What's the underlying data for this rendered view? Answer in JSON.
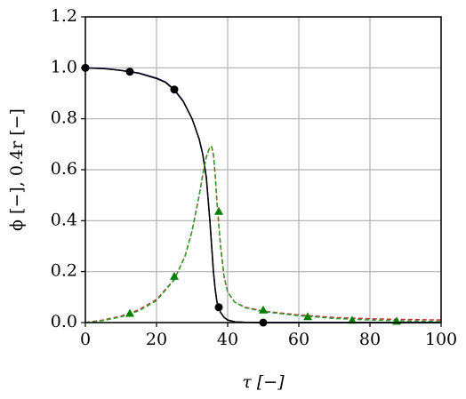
{
  "chart_data": {
    "type": "line",
    "xlabel": "τ [−]",
    "ylabel": "ϕ [−], 0.4r [−]",
    "xlim": [
      0,
      100
    ],
    "ylim": [
      0,
      1.2
    ],
    "xticks": [
      0,
      20,
      40,
      60,
      80,
      100
    ],
    "yticks": [
      {
        "value": 0,
        "label": "0.0"
      },
      {
        "value": 0.2,
        "label": "0.2"
      },
      {
        "value": 0.4,
        "label": "0.4"
      },
      {
        "value": 0.6,
        "label": "0.6"
      },
      {
        "value": 0.8,
        "label": "0.8"
      },
      {
        "value": 1.0,
        "label": "1.0"
      },
      {
        "value": 1.2,
        "label": "1.2"
      }
    ],
    "grid": true,
    "series": [
      {
        "color": "#1f1fbf",
        "linestyle": "solid",
        "x": [
          0,
          5,
          10,
          15,
          20,
          22.5,
          25,
          27.5,
          30,
          32,
          33,
          34,
          35,
          35.5,
          36,
          36.5,
          37,
          37.5,
          38,
          39,
          40,
          42,
          45,
          50,
          60,
          100
        ],
        "values": [
          1.0,
          0.998,
          0.99,
          0.98,
          0.96,
          0.945,
          0.915,
          0.87,
          0.8,
          0.72,
          0.66,
          0.57,
          0.4,
          0.3,
          0.2,
          0.13,
          0.08,
          0.06,
          0.04,
          0.02,
          0.01,
          0.003,
          0.001,
          0,
          0,
          0
        ]
      },
      {
        "color": "#000000",
        "linestyle": "solid",
        "x": [
          0,
          5,
          10,
          15,
          20,
          22.5,
          25,
          27.5,
          30,
          32,
          33,
          34,
          35,
          35.5,
          36,
          36.5,
          37,
          37.5,
          38,
          39,
          40,
          42,
          45,
          50,
          60,
          100
        ],
        "values": [
          1.0,
          0.997,
          0.99,
          0.979,
          0.958,
          0.943,
          0.913,
          0.868,
          0.8,
          0.72,
          0.66,
          0.57,
          0.4,
          0.3,
          0.2,
          0.13,
          0.08,
          0.06,
          0.04,
          0.02,
          0.01,
          0.003,
          0.001,
          0,
          0,
          0
        ]
      },
      {
        "color": "#d62728",
        "linestyle": "dashed",
        "x": [
          0,
          5,
          10,
          15,
          20,
          25,
          28,
          30,
          32,
          33,
          34,
          35,
          35.5,
          36,
          36.5,
          37,
          38,
          39,
          40,
          42,
          45,
          50,
          60,
          70,
          80,
          90,
          100
        ],
        "values": [
          0,
          0.01,
          0.025,
          0.05,
          0.09,
          0.17,
          0.26,
          0.36,
          0.5,
          0.58,
          0.65,
          0.69,
          0.69,
          0.66,
          0.58,
          0.47,
          0.3,
          0.18,
          0.12,
          0.08,
          0.06,
          0.045,
          0.03,
          0.02,
          0.015,
          0.012,
          0.01
        ]
      },
      {
        "color": "#2ca02c",
        "linestyle": "dashed",
        "x": [
          0,
          5,
          10,
          15,
          20,
          25,
          28,
          30,
          32,
          33,
          34,
          35,
          35.5,
          36,
          36.5,
          37,
          38,
          39,
          40,
          42,
          45,
          50,
          60,
          70,
          80,
          90,
          100
        ],
        "values": [
          0,
          0.008,
          0.022,
          0.046,
          0.086,
          0.168,
          0.26,
          0.36,
          0.5,
          0.58,
          0.65,
          0.69,
          0.69,
          0.66,
          0.58,
          0.47,
          0.3,
          0.18,
          0.12,
          0.08,
          0.058,
          0.043,
          0.027,
          0.016,
          0.01,
          0.006,
          0.004
        ]
      },
      {
        "color": "#000000",
        "marker": "circle",
        "x": [
          0,
          12.5,
          25,
          37.5,
          50
        ],
        "values": [
          1.0,
          0.985,
          0.915,
          0.06,
          0.0
        ]
      },
      {
        "color": "#008000",
        "marker": "triangle",
        "x": [
          12.5,
          25,
          37.5,
          50,
          62.5,
          75,
          87.5
        ],
        "values": [
          0.035,
          0.18,
          0.435,
          0.048,
          0.022,
          0.008,
          0.004
        ]
      }
    ]
  }
}
